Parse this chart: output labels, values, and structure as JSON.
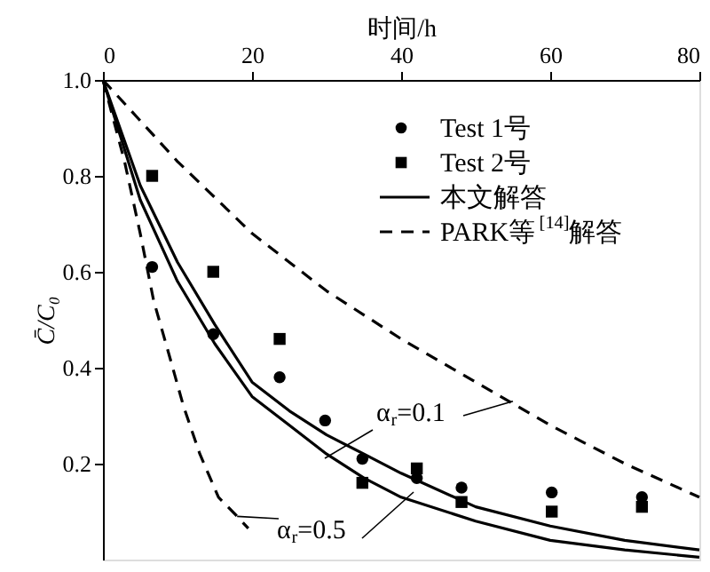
{
  "chart_data": {
    "type": "scatter",
    "xlabel": "时间/h",
    "ylabel": "C̄/C₀",
    "xlim": [
      0,
      80
    ],
    "xticks": [
      0,
      20,
      40,
      60,
      80
    ],
    "ylim": [
      0,
      1.0
    ],
    "yticks": [
      {
        "value": 0.2,
        "label": "0.2"
      },
      {
        "value": 0.4,
        "label": "0.4"
      },
      {
        "value": 0.6,
        "label": "0.6"
      },
      {
        "value": 0.8,
        "label": "0.8"
      },
      {
        "value": 1.0,
        "label": "1.0"
      }
    ],
    "grid": false,
    "legend": "top right",
    "series": [
      {
        "name": "Test 1号",
        "marker": "circle",
        "color": "#000000",
        "x": [
          6.6,
          14.8,
          23.7,
          29.8,
          34.8,
          42.1,
          48.1,
          60.2,
          72.3
        ],
        "values": [
          0.61,
          0.47,
          0.38,
          0.29,
          0.21,
          0.17,
          0.15,
          0.14,
          0.13
        ]
      },
      {
        "name": "Test 2号",
        "marker": "square",
        "color": "#000000",
        "x": [
          6.6,
          14.8,
          23.7,
          34.8,
          42.1,
          48.1,
          60.2,
          72.3
        ],
        "values": [
          0.8,
          0.6,
          0.46,
          0.16,
          0.19,
          0.12,
          0.1,
          0.11
        ]
      },
      {
        "name": "本文解答",
        "type": "line",
        "line_style": "solid",
        "color": "#000000",
        "x": [
          0,
          5,
          10,
          15,
          20,
          25,
          30,
          35,
          40,
          50,
          60,
          70,
          80
        ],
        "values": [
          1.0,
          0.78,
          0.62,
          0.49,
          0.37,
          0.31,
          0.26,
          0.22,
          0.18,
          0.11,
          0.07,
          0.04,
          0.02
        ]
      },
      {
        "type": "line",
        "line_style": "solid",
        "color": "#000000",
        "x": [
          0,
          5,
          10,
          15,
          20,
          25,
          30,
          35,
          40,
          50,
          60,
          70,
          80
        ],
        "values": [
          1.0,
          0.75,
          0.58,
          0.45,
          0.34,
          0.28,
          0.22,
          0.17,
          0.13,
          0.08,
          0.04,
          0.02,
          0.005
        ]
      },
      {
        "name": "PARK等$^{[14]}$解答",
        "type": "line",
        "line_style": "dashed",
        "color": "#000000",
        "x": [
          0,
          10,
          20,
          30,
          40,
          50,
          60,
          70,
          80
        ],
        "values": [
          1.0,
          0.83,
          0.68,
          0.56,
          0.46,
          0.37,
          0.28,
          0.2,
          0.13
        ]
      },
      {
        "type": "line",
        "line_style": "dashed",
        "color": "#000000",
        "x": [
          0,
          2.9,
          5,
          6.8,
          9,
          10.8,
          13,
          15.5,
          18,
          19.5
        ],
        "values": [
          1.0,
          0.83,
          0.68,
          0.54,
          0.42,
          0.32,
          0.22,
          0.13,
          0.09,
          0.065
        ]
      }
    ],
    "annotations": [
      {
        "text": "α$_{r}$=0.1",
        "x": 55,
        "y": 0.33
      },
      {
        "text": "α$_{r}$=0.5",
        "x": 18,
        "y": 0.09
      }
    ]
  }
}
